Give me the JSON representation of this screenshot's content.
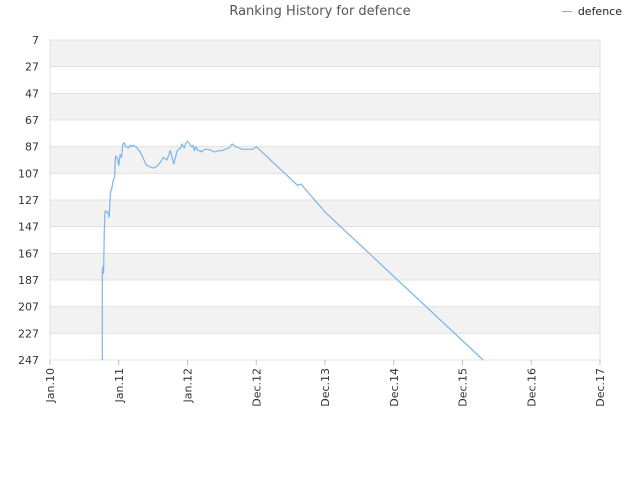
{
  "chart_data": {
    "type": "line",
    "title": "Ranking History for defence",
    "legend_position": "top-right",
    "y_inverted": true,
    "ylim": [
      7,
      247
    ],
    "yticks": [
      7,
      27,
      47,
      67,
      87,
      107,
      127,
      147,
      167,
      187,
      207,
      227,
      247
    ],
    "xlim": [
      "2010-01",
      "2017-12"
    ],
    "xticks": [
      "Jan.10",
      "Jan.11",
      "Jan.12",
      "Dec.12",
      "Dec.13",
      "Dec.14",
      "Dec.15",
      "Dec.16",
      "Dec.17"
    ],
    "grid": "alternating horizontal bands",
    "colors": {
      "series": "#7cb5ec",
      "band": "#f2f2f2",
      "grid": "#e0e0e0"
    },
    "series": [
      {
        "name": "defence",
        "x": [
          0.76,
          0.76,
          0.77,
          0.78,
          0.79,
          0.8,
          0.81,
          0.82,
          0.84,
          0.86,
          0.88,
          0.9,
          0.92,
          0.94,
          0.95,
          0.96,
          0.98,
          1.0,
          1.02,
          1.04,
          1.06,
          1.08,
          1.1,
          1.12,
          1.14,
          1.16,
          1.18,
          1.2,
          1.25,
          1.3,
          1.35,
          1.4,
          1.45,
          1.5,
          1.55,
          1.6,
          1.65,
          1.7,
          1.75,
          1.8,
          1.85,
          1.9,
          1.92,
          1.95,
          1.98,
          2.0,
          2.03,
          2.06,
          2.08,
          2.1,
          2.12,
          2.15,
          2.18,
          2.2,
          2.25,
          2.3,
          2.35,
          2.4,
          2.45,
          2.5,
          2.55,
          2.6,
          2.65,
          2.7,
          2.75,
          2.8,
          2.85,
          2.9,
          2.95,
          3.0,
          3.6,
          3.65,
          4.0,
          6.3
        ],
        "values": [
          247,
          180,
          177,
          182,
          150,
          136,
          135,
          136,
          136,
          140,
          121,
          118,
          112,
          110,
          95,
          94,
          96,
          101,
          93,
          95,
          85,
          84,
          87,
          87,
          88,
          86,
          87,
          86,
          87,
          90,
          95,
          101,
          102,
          103,
          102,
          99,
          95,
          97,
          90,
          100,
          90,
          88,
          85,
          88,
          84,
          83,
          85,
          87,
          86,
          90,
          87,
          90,
          90,
          91,
          89,
          89,
          90,
          91,
          90,
          90,
          89,
          88,
          85,
          87,
          88,
          89,
          89,
          89,
          89,
          87,
          116,
          115,
          136,
          247
        ]
      }
    ]
  }
}
